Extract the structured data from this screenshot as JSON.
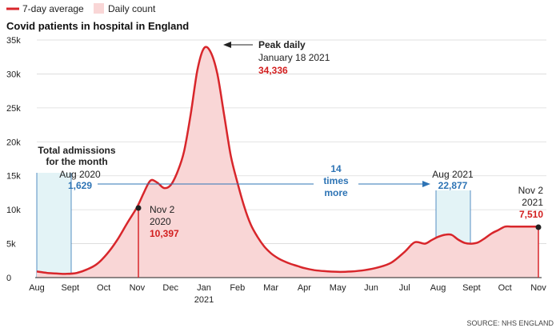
{
  "legend": {
    "line_label": "7-day average",
    "area_label": "Daily count"
  },
  "colors": {
    "line": "#d8262b",
    "area": "#f9d6d6",
    "blue": "#2e74b5",
    "box": "#e3f3f6",
    "grid": "#d9d9d9"
  },
  "annotations": {
    "peak_title": "Peak daily",
    "peak_date": "January 18 2021",
    "peak_value": "34,336",
    "total_line1": "Total admissions",
    "total_line2": "for the month",
    "aug2020_label": "Aug 2020",
    "aug2020_value": "1,629",
    "aug2021_label": "Aug 2021",
    "aug2021_value": "22,877",
    "times_line1": "14",
    "times_line2": "times",
    "times_line3": "more",
    "nov2020_line1": "Nov 2",
    "nov2020_line2": "2020",
    "nov2020_value": "10,397",
    "nov2021_line1": "Nov 2",
    "nov2021_line2": "2021",
    "nov2021_value": "7,510"
  },
  "source": "SOURCE: NHS ENGLAND",
  "chart_data": {
    "type": "area",
    "title": "Covid patients in hospital in England",
    "xlabel": "",
    "ylabel": "",
    "ylim": [
      0,
      35000
    ],
    "grid": true,
    "y_ticks": [
      0,
      5000,
      10000,
      15000,
      20000,
      25000,
      30000,
      35000
    ],
    "y_tick_labels": [
      "0",
      "5k",
      "10k",
      "15k",
      "20k",
      "25k",
      "30k",
      "35k"
    ],
    "x_tick_labels": [
      "Aug",
      "Sept",
      "Oct",
      "Nov",
      "Dec",
      "Jan",
      "Feb",
      "Mar",
      "Apr",
      "May",
      "Jun",
      "Jul",
      "Aug",
      "Sept",
      "Oct",
      "Nov"
    ],
    "x_year_label": "2021",
    "x_year_under": "Jan",
    "series": [
      {
        "name": "7-day average",
        "x": [
          0,
          0.3,
          0.6,
          0.9,
          1.2,
          1.5,
          1.8,
          2.1,
          2.4,
          2.7,
          3.0,
          3.2,
          3.4,
          3.6,
          3.8,
          4.0,
          4.2,
          4.4,
          4.6,
          4.8,
          5.0,
          5.2,
          5.4,
          5.6,
          5.8,
          6.0,
          6.2,
          6.4,
          6.6,
          6.8,
          7.0,
          7.2,
          7.4,
          7.6,
          7.8,
          8.0,
          8.3,
          8.6,
          9.0,
          9.4,
          9.8,
          10.2,
          10.6,
          11.0,
          11.3,
          11.6,
          11.8,
          12.0,
          12.2,
          12.4,
          12.6,
          12.8,
          13.0,
          13.2,
          13.4,
          13.6,
          13.8,
          14.0,
          14.2,
          14.4,
          14.6,
          14.8,
          15.0
        ],
        "values": [
          900,
          700,
          600,
          550,
          700,
          1200,
          2000,
          3500,
          5500,
          8000,
          10397,
          12500,
          14300,
          14000,
          13200,
          13600,
          15500,
          18500,
          24000,
          30500,
          33800,
          33200,
          30000,
          24000,
          18000,
          14000,
          10500,
          7800,
          6000,
          4600,
          3600,
          2900,
          2400,
          2000,
          1700,
          1400,
          1100,
          950,
          850,
          900,
          1100,
          1500,
          2200,
          3800,
          5200,
          5000,
          5500,
          6000,
          6300,
          6300,
          5600,
          5100,
          5000,
          5200,
          5800,
          6500,
          7000,
          7510,
          7510,
          7510,
          7510,
          7510,
          7510
        ]
      }
    ]
  }
}
